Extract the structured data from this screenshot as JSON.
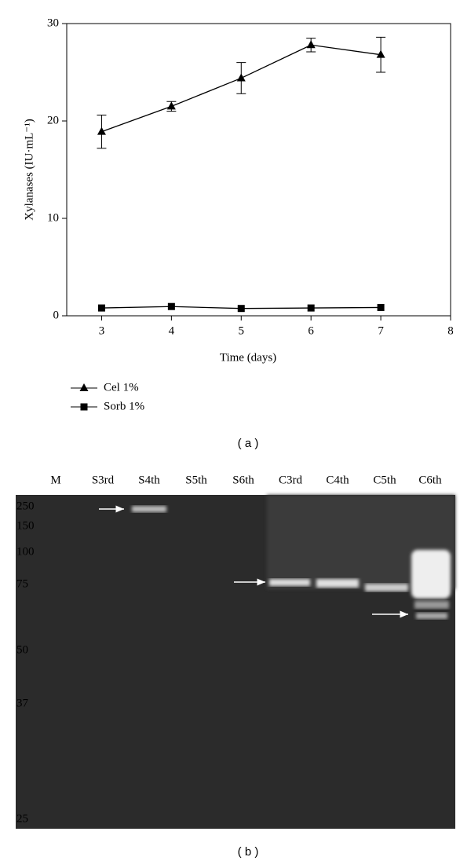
{
  "chart_data": {
    "type": "line",
    "y_label": "Xylanases (IU·mL⁻¹)",
    "x_label": "Time (days)",
    "x": [
      3,
      4,
      5,
      6,
      7
    ],
    "series": [
      {
        "name": "Cel 1%",
        "color": "#000000",
        "marker": "triangle",
        "values": [
          18.9,
          21.5,
          24.4,
          27.8,
          26.8
        ],
        "errors": [
          1.7,
          0.5,
          1.6,
          0.7,
          1.8
        ]
      },
      {
        "name": "Sorb 1%",
        "color": "#000000",
        "marker": "square",
        "values": [
          0.8,
          0.95,
          0.75,
          0.8,
          0.85
        ]
      }
    ],
    "xlim": [
      2.5,
      8
    ],
    "xticks": [
      3,
      4,
      5,
      6,
      7,
      8
    ],
    "ylim": [
      0,
      30
    ],
    "yticks": [
      0,
      10,
      20,
      30
    ],
    "legend": "bottom-left"
  },
  "caption_a": "( a )",
  "gel": {
    "lanes": [
      "M",
      "S3rd",
      "S4th",
      "S5th",
      "S6th",
      "C3rd",
      "C4th",
      "C5th",
      "C6th"
    ],
    "markers": [
      "250",
      "150",
      "100",
      "75",
      "50",
      "37",
      "25"
    ],
    "caption": "( b )"
  }
}
